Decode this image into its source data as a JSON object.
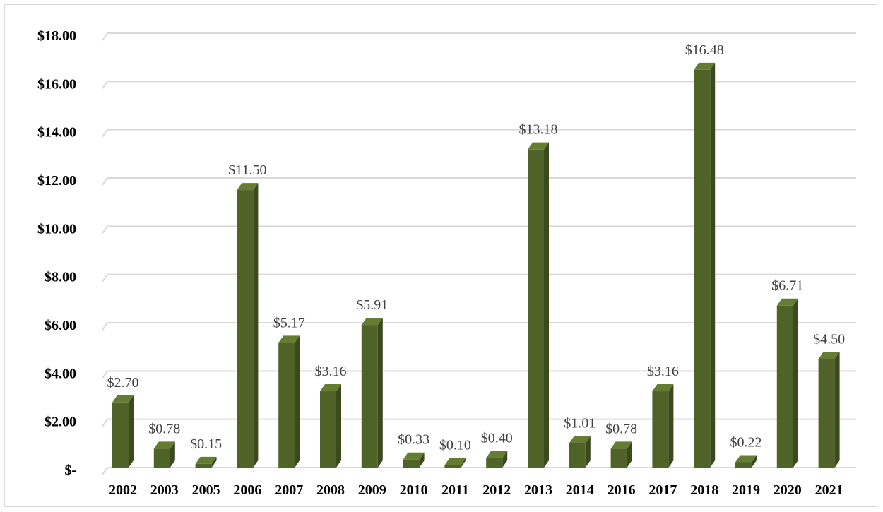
{
  "chart_data": {
    "type": "bar",
    "title": "",
    "xlabel": "",
    "ylabel": "",
    "categories": [
      "2002",
      "2003",
      "2005",
      "2006",
      "2007",
      "2008",
      "2009",
      "2010",
      "2011",
      "2012",
      "2013",
      "2014",
      "2016",
      "2017",
      "2018",
      "2019",
      "2020",
      "2021"
    ],
    "values": [
      2.7,
      0.78,
      0.15,
      11.5,
      5.17,
      3.16,
      5.91,
      0.33,
      0.1,
      0.4,
      13.18,
      1.01,
      0.78,
      3.16,
      16.48,
      0.22,
      6.71,
      4.5
    ],
    "data_labels": [
      "$2.70",
      "$0.78",
      "$0.15",
      "$11.50",
      "$5.17",
      "$3.16",
      "$5.91",
      "$0.33",
      "$0.10",
      "$0.40",
      "$13.18",
      "$1.01",
      "$0.78",
      "$3.16",
      "$16.48",
      "$0.22",
      "$6.71",
      "$4.50"
    ],
    "ylim": [
      0,
      18
    ],
    "y_ticks": [
      0,
      2,
      4,
      6,
      8,
      10,
      12,
      14,
      16,
      18
    ],
    "y_tick_labels": [
      "$-",
      "$2.00",
      "$4.00",
      "$6.00",
      "$8.00",
      "$10.00",
      "$12.00",
      "$14.00",
      "$16.00",
      "$18.00"
    ],
    "grid": true,
    "legend": "none",
    "style": "3d-column",
    "colors": {
      "bar_front": "#4f6228",
      "bar_side": "#3a4a1c",
      "bar_top": "#647d33",
      "gridline": "#d9d9d9"
    }
  }
}
